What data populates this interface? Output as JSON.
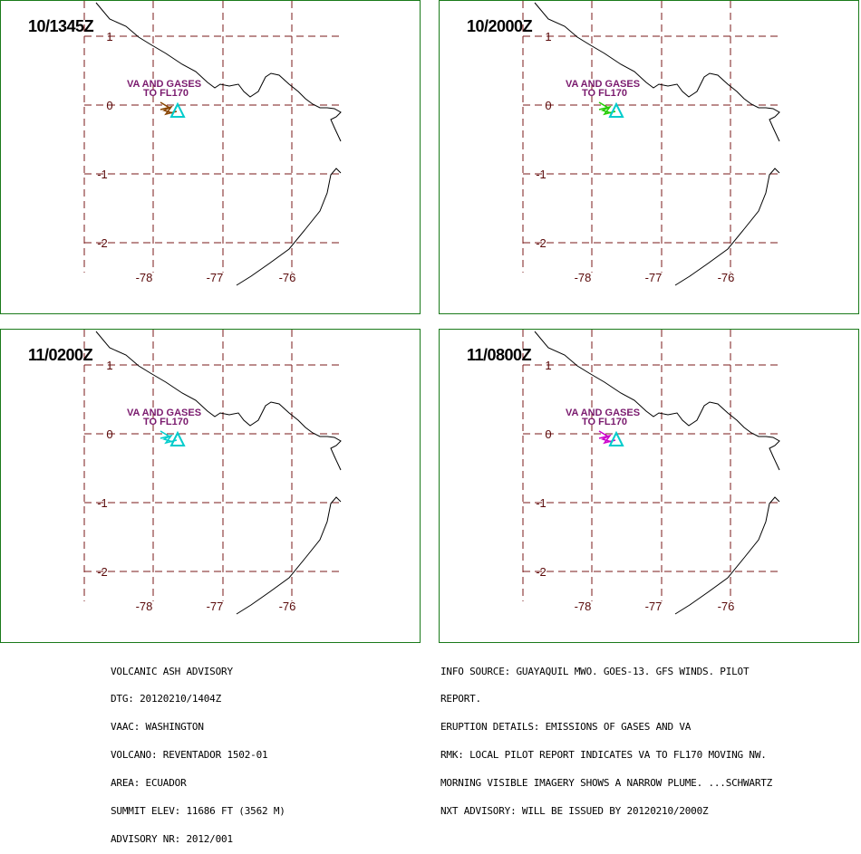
{
  "panels": [
    {
      "time": "10/1345Z",
      "label_lines": [
        "VA AND GASES",
        "TO FL170"
      ],
      "plume_color": "#884400"
    },
    {
      "time": "10/2000Z",
      "label_lines": [
        "VA AND GASES",
        "TO FL170"
      ],
      "plume_color": "#22cc00"
    },
    {
      "time": "11/0200Z",
      "label_lines": [
        "VA AND GASES",
        "TO FL170"
      ],
      "plume_color": "#00cccc"
    },
    {
      "time": "11/0800Z",
      "label_lines": [
        "VA AND GASES",
        "TO FL170"
      ],
      "plume_color": "#cc00cc"
    }
  ],
  "lat_labels": [
    "1",
    "0",
    "-1",
    "-2"
  ],
  "lon_labels": [
    "-78",
    "-77",
    "-76"
  ],
  "volcano_icon": "triangle-icon",
  "colors": {
    "frame": "#1a7a1a",
    "grid": "#7a1a1a",
    "coast": "#000000",
    "label": "#7a1a6e",
    "volcano": "#00cccc"
  },
  "advisory_left": [
    "VOLCANIC ASH ADVISORY",
    "DTG: 20120210/1404Z",
    "VAAC: WASHINGTON",
    "VOLCANO: REVENTADOR 1502-01",
    "AREA: ECUADOR",
    "SUMMIT ELEV: 11686 FT (3562 M)",
    "ADVISORY NR: 2012/001"
  ],
  "advisory_right": [
    "INFO SOURCE: GUAYAQUIL MWO. GOES-13. GFS WINDS. PILOT",
    "REPORT.",
    "ERUPTION DETAILS: EMISSIONS OF GASES AND VA",
    "RMK: LOCAL PILOT REPORT INDICATES VA TO FL170 MOVING NW.",
    "MORNING VISIBLE IMAGERY SHOWS A NARROW PLUME. ...SCHWARTZ",
    "NXT ADVISORY: WILL BE ISSUED BY 20120210/2000Z"
  ]
}
